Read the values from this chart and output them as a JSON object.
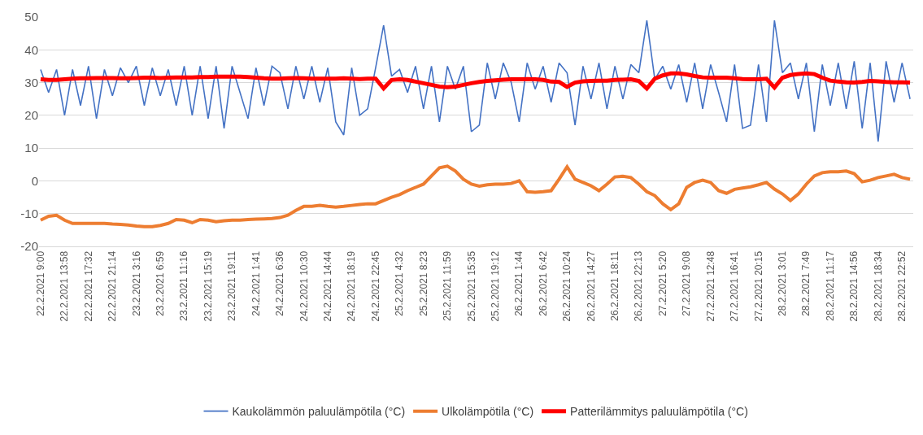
{
  "chart_data": {
    "type": "line",
    "categories": [
      "22.2.2021 9:00",
      null,
      null,
      "22.2.2021 13:58",
      null,
      null,
      "22.2.2021 17:32",
      null,
      null,
      "22.2.2021 21:14",
      null,
      null,
      "23.2.2021 3:16",
      null,
      null,
      "23.2.2021 6:59",
      null,
      null,
      "23.2.2021 11:16",
      null,
      null,
      "23.2.2021 15:19",
      null,
      null,
      "23.2.2021 19:11",
      null,
      null,
      "24.2.2021 1:41",
      null,
      null,
      "24.2.2021 6:36",
      null,
      null,
      "24.2.2021 10:30",
      null,
      null,
      "24.2.2021 14:44",
      null,
      null,
      "24.2.2021 18:19",
      null,
      null,
      "24.2.2021 22:45",
      null,
      null,
      "25.2.2021 4:32",
      null,
      null,
      "25.2.2021 8:23",
      null,
      null,
      "25.2.2021 11:59",
      null,
      null,
      "25.2.2021 15:35",
      null,
      null,
      "25.2.2021 19:12",
      null,
      null,
      "26.2.2021 1:44",
      null,
      null,
      "26.2.2021 6:42",
      null,
      null,
      "26.2.2021 10:24",
      null,
      null,
      "26.2.2021 14:27",
      null,
      null,
      "26.2.2021 18:11",
      null,
      null,
      "26.2.2021 22:13",
      null,
      null,
      "27.2.2021 5:20",
      null,
      null,
      "27.2.2021 9:08",
      null,
      null,
      "27.2.2021 12:48",
      null,
      null,
      "27.2.2021 16:41",
      null,
      null,
      "27.2.2021 20:15",
      null,
      null,
      "28.2.2021 3:01",
      null,
      null,
      "28.2.2021 7:49",
      null,
      null,
      "28.2.2021 11:17",
      null,
      null,
      "28.2.2021 14:56",
      null,
      null,
      "28.2.2021 18:34",
      null,
      null,
      "28.2.2021 22:52",
      null
    ],
    "series": [
      {
        "name": "Kaukolämmön paluulämpötila (°C)",
        "color": "#4472c4",
        "values": [
          34,
          27,
          34,
          20,
          34,
          23,
          35,
          19,
          34,
          26,
          34.5,
          30,
          35,
          23,
          34.5,
          26,
          34,
          23,
          35,
          20,
          35,
          19,
          35,
          16,
          35,
          27,
          19,
          34.5,
          23,
          35,
          33,
          22,
          35,
          25,
          35,
          24,
          34.5,
          18,
          14,
          34.5,
          20,
          22,
          34.5,
          47.5,
          32,
          34,
          27,
          35,
          22,
          35,
          18,
          35,
          28,
          35,
          15,
          17,
          36,
          25,
          36,
          30,
          18,
          36,
          28,
          35,
          24,
          36,
          33,
          17,
          35,
          25,
          36,
          22,
          35,
          25,
          35.5,
          33,
          49,
          31,
          35,
          28,
          35.5,
          24,
          36,
          22,
          35.5,
          27,
          18,
          35.5,
          16,
          17,
          35.5,
          18,
          49,
          33,
          36,
          25,
          36,
          15,
          35.5,
          23,
          36,
          22,
          36.5,
          16,
          36,
          12,
          36.5,
          24,
          36,
          25
        ]
      },
      {
        "name": "Ulkolämpötila (°C)",
        "color": "#ed7d31",
        "values": [
          -12,
          -10.8,
          -10.5,
          -12,
          -13,
          -13,
          -13,
          -13,
          -13,
          -13.2,
          -13.3,
          -13.5,
          -13.8,
          -14,
          -14,
          -13.6,
          -13,
          -11.8,
          -12,
          -12.8,
          -11.8,
          -12,
          -12.5,
          -12.2,
          -12,
          -12,
          -11.8,
          -11.7,
          -11.6,
          -11.5,
          -11.2,
          -10.5,
          -9,
          -7.8,
          -7.8,
          -7.5,
          -7.8,
          -8,
          -7.8,
          -7.5,
          -7.2,
          -7,
          -7,
          -6,
          -5,
          -4.2,
          -3,
          -2,
          -1,
          1.5,
          4,
          4.5,
          3,
          0.5,
          -1,
          -1.6,
          -1.2,
          -1,
          -1,
          -0.8,
          0,
          -3.3,
          -3.5,
          -3.3,
          -3,
          0.5,
          4.3,
          0.5,
          -0.5,
          -1.5,
          -3,
          -1,
          1.2,
          1.4,
          1,
          -1,
          -3.3,
          -4.5,
          -7,
          -8.8,
          -7,
          -2,
          -0.5,
          0.2,
          -0.5,
          -3,
          -3.8,
          -2.6,
          -2.2,
          -1.8,
          -1.2,
          -0.5,
          -2.5,
          -4,
          -6,
          -4,
          -1,
          1.5,
          2.5,
          2.8,
          2.8,
          3,
          2.2,
          -0.3,
          0.2,
          1,
          1.5,
          2,
          1,
          0.5
        ]
      },
      {
        "name": "Patterilämmitys paluulämpötila (°C)",
        "color": "#ff0000",
        "values": [
          31,
          30.8,
          30.8,
          31,
          31.2,
          31.3,
          31.3,
          31.4,
          31.4,
          31.4,
          31.3,
          31.3,
          31.4,
          31.5,
          31.5,
          31.4,
          31.5,
          31.6,
          31.6,
          31.6,
          31.7,
          31.7,
          31.8,
          31.8,
          31.8,
          31.8,
          31.7,
          31.5,
          31.3,
          31.2,
          31.2,
          31.3,
          31.4,
          31.3,
          31.2,
          31.2,
          31.2,
          31.2,
          31.3,
          31.2,
          31.1,
          31.2,
          31.2,
          28.2,
          30.8,
          31,
          30.8,
          30.3,
          29.8,
          29.3,
          28.8,
          28.6,
          28.8,
          29.3,
          29.8,
          30.2,
          30.5,
          30.7,
          30.9,
          31,
          31,
          31.1,
          31,
          30.8,
          30.3,
          30.2,
          28.7,
          30,
          30.4,
          30.5,
          30.6,
          30.6,
          30.8,
          30.9,
          31,
          30.5,
          28.2,
          31.2,
          32.2,
          32.8,
          32.8,
          32.5,
          32,
          31.6,
          31.5,
          31.5,
          31.5,
          31.3,
          31.1,
          31,
          31,
          31.2,
          28.5,
          31.5,
          32.3,
          32.6,
          32.8,
          32.6,
          31.5,
          30.6,
          30.3,
          30.1,
          30,
          30.2,
          30.5,
          30.4,
          30.2,
          30.1,
          30.1,
          30
        ]
      }
    ],
    "ylim": [
      -20,
      50
    ],
    "yticks": [
      -20,
      -10,
      0,
      10,
      20,
      30,
      40,
      50
    ],
    "grid": "y",
    "legend": "bottom"
  }
}
